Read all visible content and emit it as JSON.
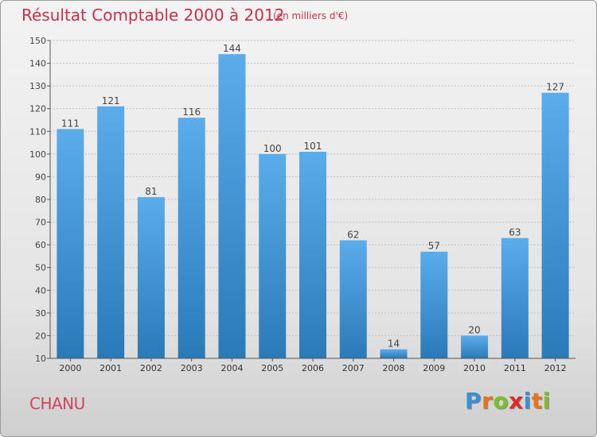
{
  "header": {
    "title": "Résultat Comptable 2000 à 2012",
    "subtitle": "(en milliers d'€)"
  },
  "footer": {
    "place": "CHANU",
    "logo_letters": [
      "P",
      "r",
      "o",
      "x",
      "i",
      "t",
      "i"
    ],
    "logo_colors": [
      "#3a8fd6",
      "#e8741a",
      "#7cbf2a",
      "#e02a2a",
      "#3a8fd6",
      "#e8741a",
      "#7cbf2a"
    ]
  },
  "chart_data": {
    "type": "bar",
    "title": "Résultat Comptable 2000 à 2012",
    "subtitle": "(en milliers d'€)",
    "categories": [
      "2000",
      "2001",
      "2002",
      "2003",
      "2004",
      "2005",
      "2006",
      "2007",
      "2008",
      "2009",
      "2010",
      "2011",
      "2012"
    ],
    "values": [
      111,
      121,
      81,
      116,
      144,
      100,
      101,
      62,
      14,
      57,
      20,
      63,
      127
    ],
    "ylim": [
      10,
      150
    ],
    "yticks": [
      10,
      20,
      30,
      40,
      50,
      60,
      70,
      80,
      90,
      100,
      110,
      120,
      130,
      140,
      150
    ],
    "xlabel": "",
    "ylabel": "",
    "grid": true,
    "bar_color_top": "#5aacea",
    "bar_color_bottom": "#2a7ab8"
  }
}
